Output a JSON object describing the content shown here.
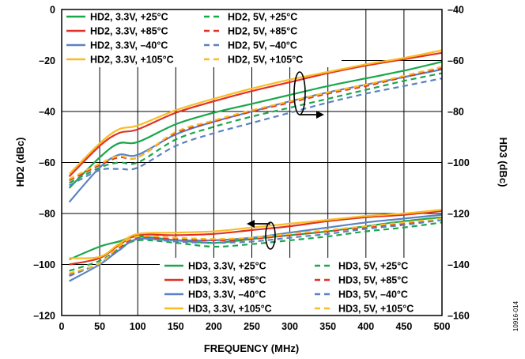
{
  "figure_id": "10916-014",
  "colors": {
    "+25C": "#1aa64a",
    "+85C": "#e03127",
    "-40C": "#5b82c2",
    "+105C": "#f7bd22"
  },
  "chart_data": {
    "type": "line",
    "xlabel": "FREQUENCY (MHz)",
    "ylabel_left": "HD2 (dBc)",
    "ylabel_right": "HD3 (dBc)",
    "xlim": [
      0,
      500
    ],
    "ylim_left": [
      -120,
      0
    ],
    "ylim_right": [
      -160,
      -40
    ],
    "x_ticks": [
      "0",
      "50",
      "100",
      "150",
      "200",
      "250",
      "300",
      "350",
      "400",
      "450",
      "500"
    ],
    "y_left_ticks": [
      "0",
      "–20",
      "–40",
      "–60",
      "–80",
      "–100",
      "–120"
    ],
    "y_right_ticks": [
      "–40",
      "–60",
      "–80",
      "–100",
      "–120",
      "–140",
      "–160"
    ],
    "grid": true,
    "x": [
      10,
      50,
      75,
      100,
      150,
      200,
      250,
      300,
      350,
      400,
      450,
      500
    ],
    "series": [
      {
        "name": "HD2, 3.3V, +25°C",
        "axis": "left",
        "style": "solid",
        "color_key": "+25C",
        "values": [
          -70,
          -58,
          -52.5,
          -52,
          -45,
          -40.5,
          -37,
          -33.5,
          -30,
          -27,
          -24,
          -20.5
        ]
      },
      {
        "name": "HD2, 3.3V, +85°C",
        "axis": "left",
        "style": "solid",
        "color_key": "+85C",
        "values": [
          -65.5,
          -53.5,
          -48.5,
          -47,
          -40.5,
          -36,
          -32,
          -28.5,
          -25,
          -22,
          -19.5,
          -17
        ]
      },
      {
        "name": "HD2, 3.3V, –40°C",
        "axis": "left",
        "style": "solid",
        "color_key": "-40C",
        "values": [
          -75.5,
          -62,
          -57,
          -57,
          -49,
          -44,
          -40,
          -36,
          -32.5,
          -29.5,
          -26.5,
          -23.5
        ]
      },
      {
        "name": "HD2, 3.3V, +105°C",
        "axis": "left",
        "style": "solid",
        "color_key": "+105C",
        "values": [
          -64.5,
          -52.5,
          -47,
          -45.5,
          -39.5,
          -35,
          -31,
          -27.5,
          -24.5,
          -21.5,
          -19,
          -16
        ]
      },
      {
        "name": "HD2, 5V, +25°C",
        "axis": "left",
        "style": "dashed",
        "color_key": "+25C",
        "values": [
          -68,
          -62,
          -60,
          -60,
          -51,
          -46,
          -42,
          -38.5,
          -35,
          -31.5,
          -28,
          -25
        ]
      },
      {
        "name": "HD2, 5V, +85°C",
        "axis": "left",
        "style": "dashed",
        "color_key": "+85C",
        "values": [
          -67,
          -61,
          -58,
          -58,
          -48.5,
          -44,
          -40,
          -36.5,
          -33,
          -30,
          -26.5,
          -23
        ]
      },
      {
        "name": "HD2, 5V, –40°C",
        "axis": "left",
        "style": "dashed",
        "color_key": "-40C",
        "values": [
          -69,
          -63,
          -62.5,
          -62,
          -53.5,
          -48.5,
          -44.5,
          -40.5,
          -36.5,
          -33,
          -30,
          -27
        ]
      },
      {
        "name": "HD2, 5V, +105°C",
        "axis": "left",
        "style": "dashed",
        "color_key": "+105C",
        "values": [
          -66.5,
          -60.5,
          -57.5,
          -58,
          -48,
          -43.5,
          -39.5,
          -36,
          -32.5,
          -29.5,
          -26,
          -22.5
        ]
      },
      {
        "name": "HD3, 3.3V, +25°C",
        "axis": "right",
        "style": "solid",
        "color_key": "+25C",
        "values": [
          -138,
          -133,
          -131,
          -129,
          -130.5,
          -131.5,
          -130,
          -128.5,
          -127,
          -125,
          -123,
          -121.5
        ]
      },
      {
        "name": "HD3, 3.3V, +85°C",
        "axis": "right",
        "style": "solid",
        "color_key": "+85C",
        "values": [
          -140,
          -137.5,
          -132.5,
          -128.5,
          -128.5,
          -128,
          -126.5,
          -125,
          -123,
          -121.5,
          -120.5,
          -119
        ]
      },
      {
        "name": "HD3, 3.3V, –40°C",
        "axis": "right",
        "style": "solid",
        "color_key": "-40C",
        "values": [
          -146.5,
          -140,
          -134.5,
          -130,
          -130.5,
          -130.5,
          -129.5,
          -127.5,
          -125.5,
          -123.5,
          -122,
          -120.5
        ]
      },
      {
        "name": "HD3, 3.3V, +105°C",
        "axis": "right",
        "style": "solid",
        "color_key": "+105C",
        "values": [
          -137.5,
          -137,
          -132,
          -128,
          -127.5,
          -127,
          -125.5,
          -124,
          -122.5,
          -121,
          -120,
          -118.5
        ]
      },
      {
        "name": "HD3, 5V, +25°C",
        "axis": "right",
        "style": "dashed",
        "color_key": "+25C",
        "values": [
          -142.5,
          -138.5,
          -134,
          -130.5,
          -131.5,
          -133,
          -132,
          -130.5,
          -129,
          -127,
          -125.5,
          -123.5
        ]
      },
      {
        "name": "HD3, 5V, +85°C",
        "axis": "right",
        "style": "dashed",
        "color_key": "+85C",
        "values": [
          -144,
          -139.5,
          -133.5,
          -129.5,
          -130,
          -130.5,
          -130,
          -128.5,
          -127,
          -125.5,
          -124,
          -122.5
        ]
      },
      {
        "name": "HD3, 5V, –40°C",
        "axis": "right",
        "style": "dashed",
        "color_key": "-40C",
        "values": [
          -144.5,
          -139.5,
          -134.5,
          -130,
          -131,
          -131.5,
          -131,
          -129.5,
          -128,
          -126,
          -124.5,
          -122.5
        ]
      },
      {
        "name": "HD3, 5V, +105°C",
        "axis": "right",
        "style": "dashed",
        "color_key": "+105C",
        "values": [
          -143.5,
          -139.5,
          -133,
          -129,
          -129.5,
          -130,
          -129.5,
          -128,
          -126.5,
          -125,
          -123.5,
          -122
        ]
      }
    ]
  }
}
